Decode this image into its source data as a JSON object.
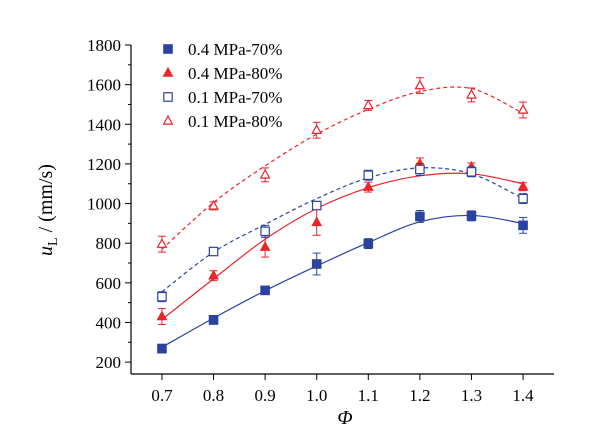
{
  "chart_data": {
    "type": "scatter",
    "title": "",
    "xlabel": "Φ",
    "ylabel_main": "u",
    "ylabel_sub": "L",
    "ylabel_unit": " / (mm/s)",
    "xlim": [
      0.64,
      1.46
    ],
    "ylim": [
      140,
      1800
    ],
    "x_ticks": [
      0.7,
      0.8,
      0.9,
      1.0,
      1.1,
      1.2,
      1.3,
      1.4
    ],
    "y_ticks": [
      200,
      400,
      600,
      800,
      1000,
      1200,
      1400,
      1600,
      1800
    ],
    "legend_position": "top-left",
    "series": [
      {
        "name": "0.4 MPa-70%",
        "marker": "square-filled",
        "color": "#2b43a0",
        "fit_style": "solid",
        "x": [
          0.7,
          0.8,
          0.9,
          1.0,
          1.1,
          1.2,
          1.3,
          1.4
        ],
        "y": [
          268,
          413,
          562,
          695,
          798,
          935,
          938,
          890
        ],
        "err": [
          22,
          22,
          15,
          55,
          25,
          30,
          25,
          40
        ],
        "fit": [
          [
            0.7,
            275
          ],
          [
            0.8,
            422
          ],
          [
            0.9,
            560
          ],
          [
            1.0,
            685
          ],
          [
            1.1,
            803
          ],
          [
            1.2,
            908
          ],
          [
            1.3,
            940
          ],
          [
            1.4,
            900
          ]
        ]
      },
      {
        "name": "0.4 MPa-80%",
        "marker": "triangle-filled",
        "color": "#e8262b",
        "fit_style": "solid",
        "x": [
          0.7,
          0.8,
          0.9,
          1.0,
          1.1,
          1.2,
          1.3,
          1.4
        ],
        "y": [
          430,
          636,
          780,
          905,
          1083,
          1200,
          1185,
          1085
        ],
        "err": [
          40,
          25,
          50,
          65,
          25,
          30,
          20,
          20
        ],
        "fit": [
          [
            0.7,
            415
          ],
          [
            0.8,
            620
          ],
          [
            0.9,
            820
          ],
          [
            1.0,
            975
          ],
          [
            1.1,
            1080
          ],
          [
            1.2,
            1140
          ],
          [
            1.3,
            1150
          ],
          [
            1.4,
            1100
          ]
        ]
      },
      {
        "name": "0.1 MPa-70%",
        "marker": "square-open",
        "color": "#2b43a0",
        "fit_style": "dashed",
        "x": [
          0.7,
          0.8,
          0.9,
          1.0,
          1.1,
          1.2,
          1.3,
          1.4
        ],
        "y": [
          530,
          758,
          860,
          990,
          1143,
          1172,
          1160,
          1025
        ],
        "err": [
          25,
          20,
          30,
          20,
          25,
          30,
          25,
          25
        ],
        "fit": [
          [
            0.7,
            555
          ],
          [
            0.8,
            755
          ],
          [
            0.9,
            895
          ],
          [
            1.0,
            1025
          ],
          [
            1.1,
            1130
          ],
          [
            1.2,
            1180
          ],
          [
            1.3,
            1150
          ],
          [
            1.4,
            1025
          ]
        ]
      },
      {
        "name": "0.1 MPa-80%",
        "marker": "triangle-open",
        "color": "#e8262b",
        "fit_style": "dashed",
        "x": [
          0.7,
          0.8,
          0.9,
          1.0,
          1.1,
          1.2,
          1.3,
          1.4
        ],
        "y": [
          795,
          988,
          1145,
          1370,
          1495,
          1595,
          1548,
          1472
        ],
        "err": [
          40,
          20,
          35,
          40,
          25,
          40,
          35,
          40
        ],
        "fit": [
          [
            0.7,
            770
          ],
          [
            0.8,
            1005
          ],
          [
            0.9,
            1190
          ],
          [
            1.0,
            1350
          ],
          [
            1.1,
            1475
          ],
          [
            1.2,
            1565
          ],
          [
            1.3,
            1580
          ],
          [
            1.4,
            1455
          ]
        ]
      }
    ]
  }
}
